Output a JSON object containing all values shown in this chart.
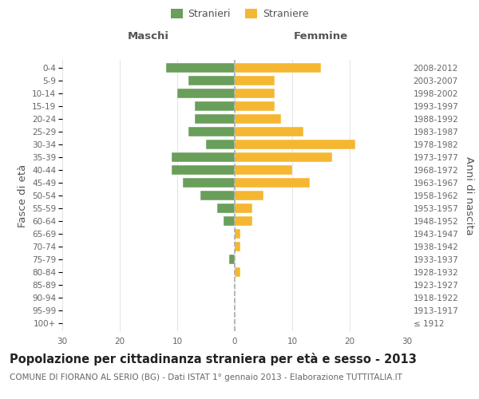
{
  "age_groups": [
    "100+",
    "95-99",
    "90-94",
    "85-89",
    "80-84",
    "75-79",
    "70-74",
    "65-69",
    "60-64",
    "55-59",
    "50-54",
    "45-49",
    "40-44",
    "35-39",
    "30-34",
    "25-29",
    "20-24",
    "15-19",
    "10-14",
    "5-9",
    "0-4"
  ],
  "birth_years": [
    "≤ 1912",
    "1913-1917",
    "1918-1922",
    "1923-1927",
    "1928-1932",
    "1933-1937",
    "1938-1942",
    "1943-1947",
    "1948-1952",
    "1953-1957",
    "1958-1962",
    "1963-1967",
    "1968-1972",
    "1973-1977",
    "1978-1982",
    "1983-1987",
    "1988-1992",
    "1993-1997",
    "1998-2002",
    "2003-2007",
    "2008-2012"
  ],
  "maschi": [
    0,
    0,
    0,
    0,
    0,
    1,
    0,
    0,
    2,
    3,
    6,
    9,
    11,
    11,
    5,
    8,
    7,
    7,
    10,
    8,
    12
  ],
  "femmine": [
    0,
    0,
    0,
    0,
    1,
    0,
    1,
    1,
    3,
    3,
    5,
    13,
    10,
    17,
    21,
    12,
    8,
    7,
    7,
    7,
    15
  ],
  "maschi_color": "#6a9e5b",
  "femmine_color": "#f5b731",
  "title": "Popolazione per cittadinanza straniera per età e sesso - 2013",
  "subtitle": "COMUNE DI FIORANO AL SERIO (BG) - Dati ISTAT 1° gennaio 2013 - Elaborazione TUTTITALIA.IT",
  "xlabel_left": "Maschi",
  "xlabel_right": "Femmine",
  "ylabel_left": "Fasce di età",
  "ylabel_right": "Anni di nascita",
  "legend_maschi": "Stranieri",
  "legend_femmine": "Straniere",
  "xlim": 30,
  "background_color": "#ffffff",
  "grid_color": "#dddddd",
  "bar_height": 0.75,
  "dashed_line_color": "#aaaaaa",
  "title_fontsize": 10.5,
  "subtitle_fontsize": 7.5,
  "tick_fontsize": 7.5,
  "label_fontsize": 9.5
}
